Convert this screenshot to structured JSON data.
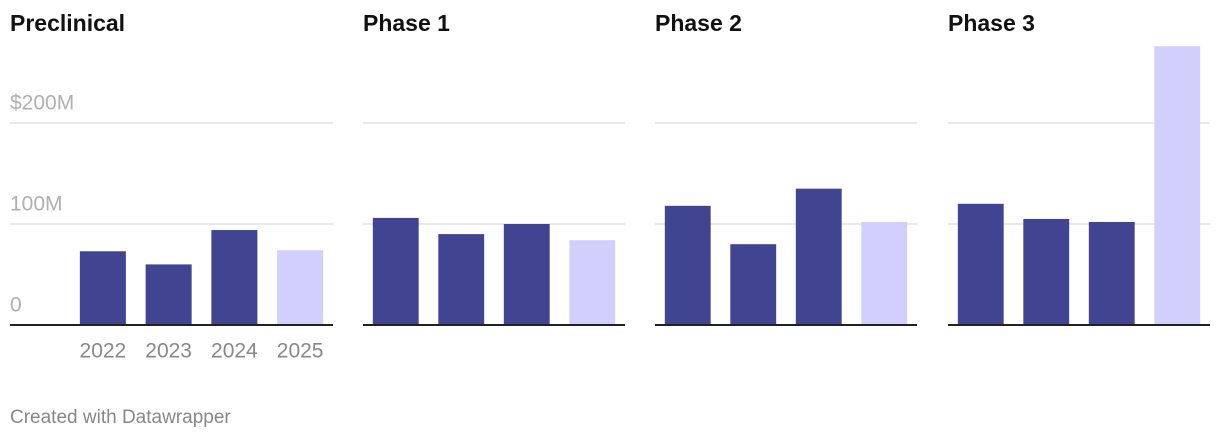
{
  "chart_data": [
    {
      "type": "bar",
      "title": "Preclinical",
      "categories": [
        "2022",
        "2023",
        "2024",
        "2025"
      ],
      "values": [
        73,
        60,
        94,
        74
      ],
      "colors": [
        "#404491",
        "#404491",
        "#404491",
        "#d1d0fc"
      ],
      "ylim": [
        0,
        280
      ],
      "yticks": [
        0,
        {
          "value": 100,
          "label": "100M"
        },
        {
          "value": 200,
          "label": "$200M"
        }
      ],
      "grid": true
    },
    {
      "type": "bar",
      "title": "Phase 1",
      "categories": [
        null,
        null,
        null,
        null
      ],
      "values": [
        106,
        90,
        100,
        84
      ],
      "colors": [
        "#404491",
        "#404491",
        "#404491",
        "#d1d0fc"
      ],
      "ylim": [
        0,
        280
      ],
      "yticks": [
        0,
        100,
        200
      ],
      "grid": true
    },
    {
      "type": "bar",
      "title": "Phase 2",
      "categories": [
        null,
        null,
        null,
        null
      ],
      "values": [
        118,
        80,
        135,
        102
      ],
      "colors": [
        "#404491",
        "#404491",
        "#404491",
        "#d1d0fc"
      ],
      "ylim": [
        0,
        280
      ],
      "yticks": [
        0,
        100,
        200
      ],
      "grid": true
    },
    {
      "type": "bar",
      "title": "Phase 3",
      "categories": [
        null,
        null,
        null,
        null
      ],
      "values": [
        120,
        105,
        102,
        276
      ],
      "colors": [
        "#404491",
        "#404491",
        "#404491",
        "#d1d0fc"
      ],
      "ylim": [
        0,
        280
      ],
      "yticks": [
        0,
        100,
        200
      ],
      "grid": true
    }
  ],
  "footer": "Created with Datawrapper"
}
